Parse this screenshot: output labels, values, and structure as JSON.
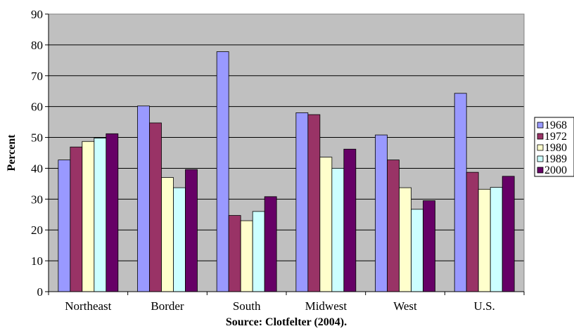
{
  "chart_data": {
    "type": "bar",
    "title": "",
    "xlabel": "Source: Clotfelter (2004).",
    "ylabel": "Percent",
    "ylim": [
      0,
      90
    ],
    "yticks": [
      0,
      10,
      20,
      30,
      40,
      50,
      60,
      70,
      80,
      90
    ],
    "grid": true,
    "legend_position": "right",
    "categories": [
      "Northeast",
      "Border",
      "South",
      "Midwest",
      "West",
      "U.S."
    ],
    "series": [
      {
        "name": "1968",
        "color": "#9999ff",
        "values": [
          42.7,
          60.2,
          77.8,
          58.0,
          50.8,
          64.3
        ]
      },
      {
        "name": "1972",
        "color": "#993366",
        "values": [
          46.9,
          54.7,
          24.7,
          57.4,
          42.7,
          38.7
        ]
      },
      {
        "name": "1980",
        "color": "#ffffcc",
        "values": [
          48.7,
          37.0,
          23.0,
          43.6,
          33.7,
          33.2
        ]
      },
      {
        "name": "1989",
        "color": "#ccffff",
        "values": [
          49.8,
          33.7,
          26.0,
          40.0,
          26.7,
          33.8
        ]
      },
      {
        "name": "2000",
        "color": "#660066",
        "values": [
          51.2,
          39.6,
          30.8,
          46.2,
          29.5,
          37.4
        ]
      }
    ],
    "plot_background": "#c0c0c0"
  }
}
